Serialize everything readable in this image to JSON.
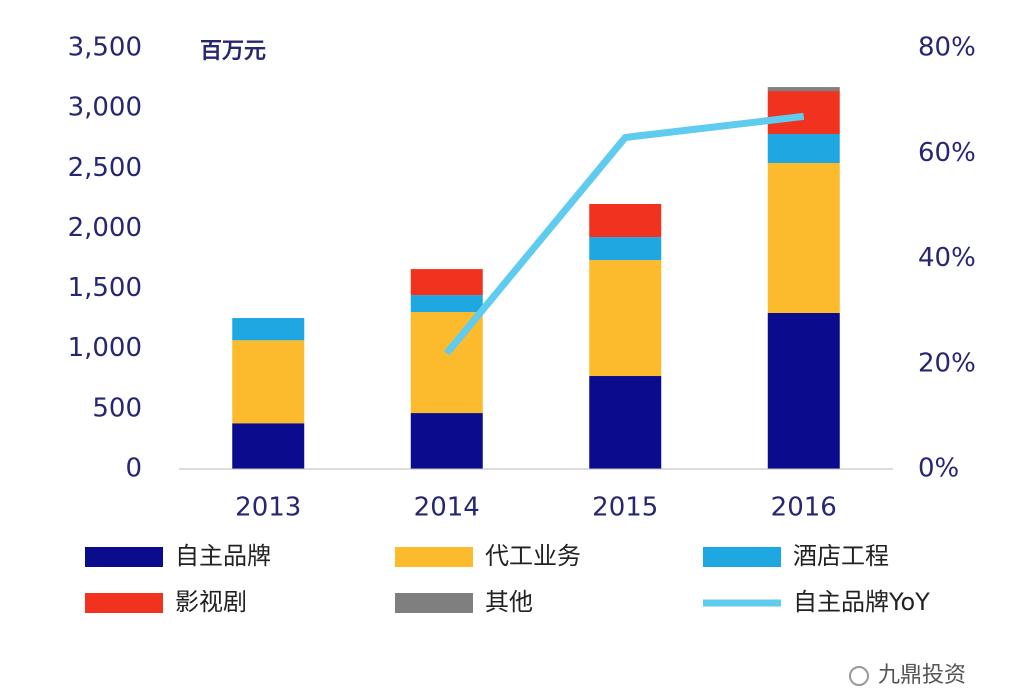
{
  "chart_data": {
    "type": "bar",
    "stacked": true,
    "unit_label": "百万元",
    "categories": [
      "2013",
      "2014",
      "2015",
      "2016"
    ],
    "series": [
      {
        "name": "自主品牌",
        "color": "#0b0b8e",
        "values": [
          380,
          465,
          773,
          1297
        ]
      },
      {
        "name": "代工业务",
        "color": "#fbbb2d",
        "values": [
          690,
          840,
          964,
          1247
        ]
      },
      {
        "name": "酒店工程",
        "color": "#1fa7e1",
        "values": [
          185,
          141,
          191,
          241
        ]
      },
      {
        "name": "影视剧",
        "color": "#f0321f",
        "values": [
          0,
          216,
          275,
          357
        ]
      },
      {
        "name": "其他",
        "color": "#7f7f7f",
        "values": [
          0,
          0,
          0,
          33
        ]
      },
      {
        "name": "自主品牌YoY",
        "color": "#5ecbef",
        "type": "line",
        "axis": "y2",
        "values": [
          null,
          22,
          63,
          67
        ]
      }
    ],
    "ylim": [
      0,
      3500
    ],
    "yticks": [
      0,
      500,
      {
        "value": 1000,
        "label": "1,000"
      },
      {
        "value": 1500,
        "label": "1,500"
      },
      {
        "value": 2000,
        "label": "2,000"
      },
      {
        "value": 2500,
        "label": "2,500"
      },
      {
        "value": 3000,
        "label": "3,000"
      },
      {
        "value": 3500,
        "label": "3,500"
      }
    ],
    "y2lim": [
      0,
      80
    ],
    "y2ticks": [
      {
        "value": 0,
        "label": "0%"
      },
      {
        "value": 20,
        "label": "20%"
      },
      {
        "value": 40,
        "label": "40%"
      },
      {
        "value": 60,
        "label": "60%"
      },
      {
        "value": 80,
        "label": "80%"
      }
    ],
    "watermark": "九鼎投资"
  }
}
